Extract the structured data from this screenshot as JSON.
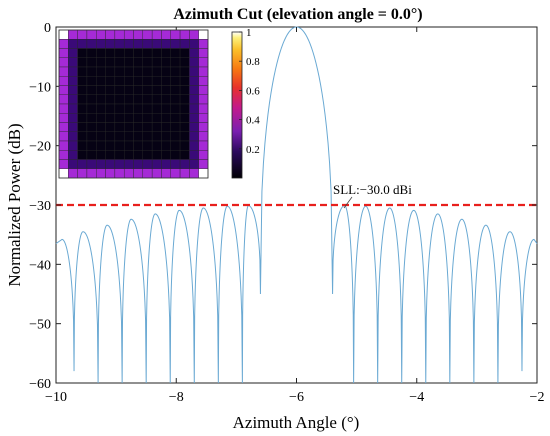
{
  "chart_data": {
    "type": "line",
    "title": "Azimuth Cut (elevation angle = 0.0°)",
    "xlabel": "Azimuth Angle (°)",
    "ylabel": "Normalized Power (dB)",
    "xlim": [
      -10,
      -2
    ],
    "ylim": [
      -60,
      0
    ],
    "x_ticks": [
      "−10",
      "−8",
      "−6",
      "−4",
      "−2"
    ],
    "y_ticks": [
      "0",
      "−10",
      "−20",
      "−30",
      "−40",
      "−50",
      "−60"
    ],
    "grid": false,
    "main_lobe": {
      "peak_azimuth": -6.0,
      "peak_db": 0,
      "first_null_azimuth": [
        -6.6,
        -5.4
      ]
    },
    "sidelobe_peaks": {
      "x": [
        -9.9,
        -9.55,
        -9.15,
        -8.75,
        -8.35,
        -7.95,
        -7.55,
        -7.15,
        -6.8,
        -5.2,
        -4.85,
        -4.45,
        -4.05,
        -3.65,
        -3.25,
        -2.85,
        -2.45,
        -2.05
      ],
      "y": [
        -35.8,
        -34.5,
        -33.4,
        -32.4,
        -31.5,
        -30.9,
        -30.5,
        -30.2,
        -30.1,
        -30.1,
        -30.2,
        -30.5,
        -30.9,
        -31.5,
        -32.4,
        -33.4,
        -34.5,
        -35.8
      ]
    },
    "nulls": {
      "x": [
        -9.7,
        -9.3,
        -8.9,
        -8.5,
        -8.1,
        -7.7,
        -7.3,
        -6.9,
        -6.6,
        -5.4,
        -5.05,
        -4.65,
        -4.25,
        -3.85,
        -3.45,
        -3.05,
        -2.65,
        -2.25
      ],
      "y": [
        -58,
        -60,
        -60,
        -60,
        -60,
        -60,
        -60,
        -60,
        -45,
        -45,
        -60,
        -60,
        -60,
        -60,
        -60,
        -60,
        -60,
        -58
      ]
    },
    "line_color": "#6aa9d3",
    "sll": {
      "value_db": -30,
      "label": "SLL:−30.0 dBi",
      "color": "#e8201d",
      "style": "dashed"
    },
    "inset": {
      "type": "heatmap",
      "description_grid": "16x16 element amplitude taper",
      "corner_color": "#ffffff",
      "edge_color": "#a52ad6",
      "second_ring_color": "#3a0a78",
      "interior_color": "#060214",
      "colorbar_ticks": [
        "1",
        "0.8",
        "0.6",
        "0.4",
        "0.2"
      ],
      "colormap": "plasma-like (black → purple → red → orange → yellow → white)"
    }
  }
}
